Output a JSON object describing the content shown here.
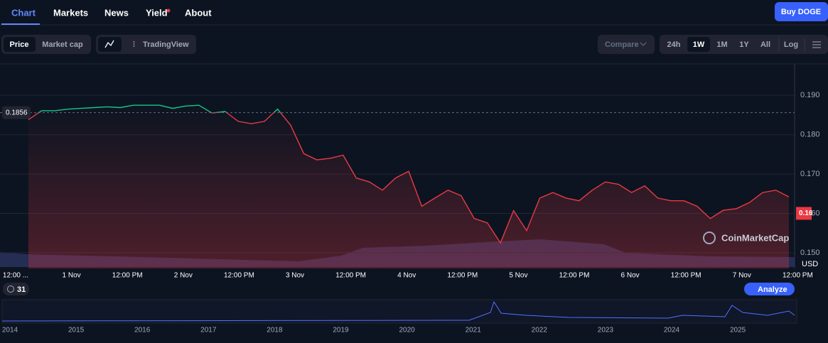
{
  "nav": {
    "tabs": [
      "Chart",
      "Markets",
      "News",
      "Yield",
      "About"
    ],
    "button": "Buy DOGE"
  },
  "toolbar": {
    "view": [
      "Price",
      "Market cap"
    ],
    "tradingview": "TradingView",
    "compare": "Compare",
    "ranges": [
      "24h",
      "1W",
      "1M",
      "1Y",
      "All"
    ],
    "log": "Log"
  },
  "chart_data": {
    "type": "line",
    "watermark": "CoinMarketCap",
    "currency": "USD",
    "x_labels": [
      "12:00 ...",
      "1 Nov",
      "12:00 PM",
      "2 Nov",
      "12:00 PM",
      "3 Nov",
      "12:00 PM",
      "4 Nov",
      "12:00 PM",
      "5 Nov",
      "12:00 PM",
      "6 Nov",
      "12:00 PM",
      "7 Nov",
      "12:00 PM"
    ],
    "series": [
      {
        "color": "#ea3943",
        "up_color": "#16c784",
        "values": [
          0.1838,
          0.1861,
          0.1861,
          0.1865,
          0.1867,
          0.1869,
          0.1871,
          0.1869,
          0.1875,
          0.1875,
          0.1875,
          0.1867,
          0.1873,
          0.1875,
          0.1855,
          0.1859,
          0.1834,
          0.1828,
          0.1834,
          0.1865,
          0.1824,
          0.1752,
          0.1736,
          0.174,
          0.1748,
          0.169,
          0.168,
          0.1659,
          0.169,
          0.1707,
          0.1618,
          0.1639,
          0.1659,
          0.1645,
          0.1587,
          0.1576,
          0.1525,
          0.1607,
          0.1556,
          0.1639,
          0.1653,
          0.1639,
          0.1632,
          0.1659,
          0.168,
          0.1674,
          0.1653,
          0.167,
          0.1639,
          0.1632,
          0.1632,
          0.1618,
          0.1587,
          0.1608,
          0.1612,
          0.1628,
          0.1653,
          0.1659,
          0.1642
        ]
      }
    ],
    "reference": 0.1856,
    "last": 0.16,
    "ylim": [
      0.146,
      0.198
    ],
    "yticks": [
      {
        "value": 0.15,
        "label": "0.150"
      },
      {
        "value": 0.16,
        "label": "0.160"
      },
      {
        "value": 0.17,
        "label": "0.170"
      },
      {
        "value": 0.18,
        "label": "0.180"
      },
      {
        "value": 0.19,
        "label": "0.190"
      }
    ],
    "grid": true
  },
  "footer": {
    "badge": "31",
    "analyze": "Analyze",
    "years": [
      "2014",
      "2015",
      "2016",
      "2017",
      "2018",
      "2019",
      "2020",
      "2021",
      "2022",
      "2023",
      "2024",
      "2025"
    ]
  }
}
